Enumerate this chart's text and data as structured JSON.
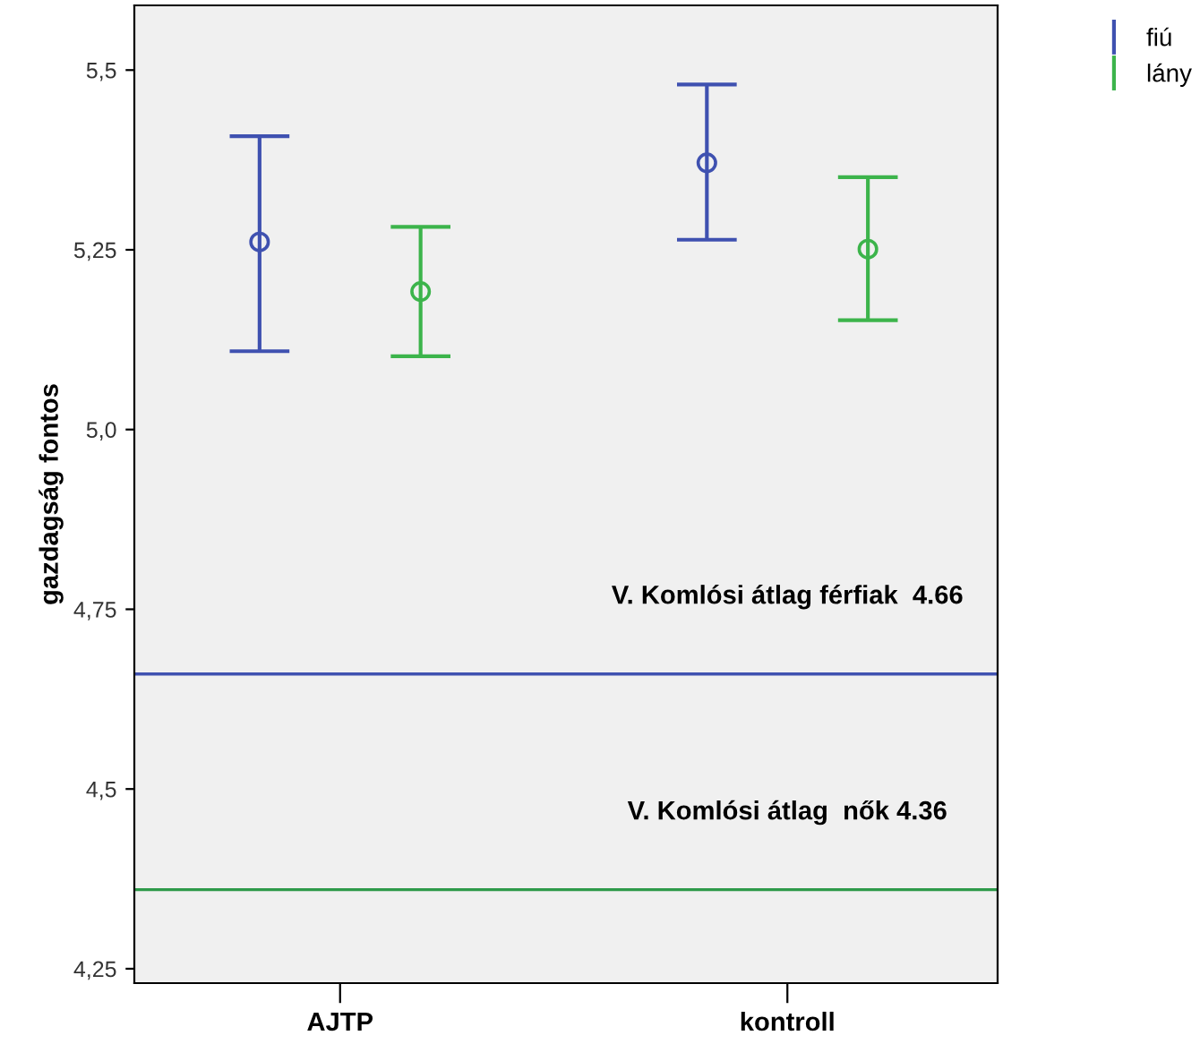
{
  "chart_data": {
    "type": "scatter",
    "ylabel": "gazdagság fontos",
    "categories": [
      "AJTP",
      "kontroll"
    ],
    "series": [
      {
        "name": "fiú",
        "color": "#3f51b0",
        "values": [
          5.261,
          5.371
        ],
        "errors": [
          [
            5.109,
            5.408
          ],
          [
            5.264,
            5.48
          ]
        ]
      },
      {
        "name": "lány",
        "color": "#3cb44b",
        "values": [
          5.192,
          5.251
        ],
        "errors": [
          [
            5.102,
            5.282
          ],
          [
            5.152,
            5.351
          ]
        ]
      }
    ],
    "ylim": [
      4.23,
      5.59
    ],
    "yticks": [
      {
        "value": 4.25,
        "label": "4,25"
      },
      {
        "value": 4.5,
        "label": "4,5"
      },
      {
        "value": 4.75,
        "label": "4,75"
      },
      {
        "value": 5.0,
        "label": "5,0"
      },
      {
        "value": 5.25,
        "label": "5,25"
      },
      {
        "value": 5.5,
        "label": "5,5"
      }
    ],
    "ref_lines": [
      {
        "axis": "y",
        "value": 4.66,
        "label": "V. Komlósi átlag férfiak  4.66",
        "color": "#3f51b0"
      },
      {
        "axis": "y",
        "value": 4.36,
        "label": "V. Komlósi átlag  nők 4.36",
        "color": "#2e9a4a"
      }
    ],
    "marker": "circle",
    "grid": false,
    "legend": "top right"
  }
}
